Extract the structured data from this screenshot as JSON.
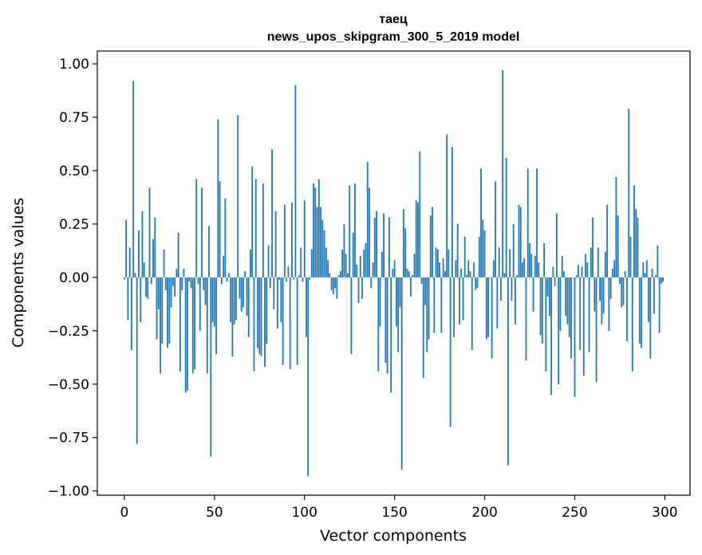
{
  "chart_data": {
    "type": "bar",
    "title_line1": "таец",
    "title_line2": "news_upos_skipgram_300_5_2019 model",
    "xlabel": "Vector components",
    "ylabel": "Components values",
    "xlim": [
      -15,
      314
    ],
    "ylim": [
      -1.02,
      1.06
    ],
    "xticks": [
      0,
      50,
      100,
      150,
      200,
      250,
      300
    ],
    "yticks": [
      1.0,
      0.75,
      0.5,
      0.25,
      0.0,
      -0.25,
      -0.5,
      -0.75,
      -1.0
    ],
    "xtick_labels": [
      "0",
      "50",
      "100",
      "150",
      "200",
      "250",
      "300"
    ],
    "ytick_labels": [
      "1.00",
      "0.75",
      "0.50",
      "0.25",
      "0.00",
      "−0.25",
      "−0.50",
      "−0.75",
      "−1.00"
    ],
    "bar_color": "#1f77b4",
    "values": [
      -0.01,
      0.27,
      -0.2,
      0.14,
      -0.34,
      0.92,
      0.02,
      -0.78,
      0.22,
      -0.21,
      0.31,
      0.07,
      -0.09,
      -0.1,
      0.42,
      -0.03,
      0.18,
      0.28,
      -0.29,
      -0.15,
      -0.45,
      -0.31,
      0.13,
      -0.06,
      -0.33,
      -0.31,
      -0.14,
      -0.04,
      -0.09,
      0.04,
      0.21,
      -0.44,
      -0.06,
      0.04,
      -0.54,
      -0.53,
      -0.02,
      -0.05,
      -0.45,
      -0.43,
      0.46,
      -0.03,
      -0.25,
      0.42,
      -0.06,
      -0.13,
      -0.45,
      0.24,
      -0.84,
      -0.21,
      -0.23,
      -0.36,
      0.74,
      0.45,
      -0.03,
      0.1,
      0.37,
      -0.02,
      0.02,
      -0.21,
      -0.37,
      -0.22,
      -0.2,
      0.76,
      -0.1,
      -0.16,
      -0.14,
      0.03,
      -0.18,
      -0.28,
      0.13,
      0.52,
      -0.44,
      0.46,
      -0.33,
      -0.36,
      -0.37,
      0.44,
      -0.42,
      -0.31,
      0.15,
      -0.05,
      0.6,
      -0.15,
      0.31,
      -0.24,
      -0.01,
      -0.21,
      -0.41,
      0.34,
      -0.02,
      0.05,
      -0.43,
      0.35,
      -0.01,
      0.9,
      -0.41,
      0.01,
      0.14,
      -0.02,
      0.36,
      -0.28,
      -0.93,
      -0.01,
      0.13,
      0.44,
      0.42,
      0.33,
      0.46,
      0.33,
      0.27,
      0.22,
      0.14,
      0.08,
      0.02,
      -0.06,
      -0.08,
      -0.05,
      -0.1,
      0.01,
      0.03,
      0.13,
      0.25,
      0.11,
      0.02,
      0.43,
      -0.36,
      0.21,
      0.44,
      0.06,
      -0.12,
      0.1,
      -0.1,
      0.13,
      0.16,
      0.54,
      0.42,
      -0.05,
      0.07,
      0.28,
      0.31,
      -0.44,
      -0.23,
      0.12,
      0.3,
      -0.4,
      -0.45,
      0.28,
      -0.54,
      0.04,
      0.08,
      -0.23,
      -0.35,
      -0.14,
      -0.9,
      0.32,
      0.23,
      0.04,
      0.03,
      -0.09,
      0.01,
      0.11,
      0.36,
      0.35,
      0.59,
      -0.03,
      -0.47,
      -0.13,
      -0.35,
      -0.29,
      0.29,
      0.33,
      -0.26,
      0.14,
      0.13,
      0.07,
      -0.26,
      0.09,
      0.03,
      0.67,
      0.13,
      -0.7,
      0.61,
      -0.28,
      0.08,
      0.25,
      -0.22,
      0.04,
      -0.2,
      0.19,
      0.01,
      0.08,
      0.03,
      -0.34,
      0.07,
      -0.06,
      -0.05,
      0.19,
      0.51,
      0.27,
      0.22,
      -0.29,
      -0.28,
      0.0,
      -0.38,
      0.08,
      0.45,
      -0.24,
      0.14,
      -0.11,
      0.97,
      0.02,
      0.56,
      -0.88,
      0.13,
      -0.11,
      0.25,
      -0.22,
      0.01,
      0.34,
      0.33,
      0.07,
      0.09,
      -0.39,
      0.51,
      0.16,
      0.11,
      -0.16,
      0.1,
      0.51,
      0.07,
      -0.27,
      -0.31,
      0.16,
      -0.44,
      -0.09,
      -0.18,
      -0.55,
      0.05,
      -0.04,
      0.3,
      -0.5,
      -0.25,
      0.1,
      0.03,
      -0.18,
      -0.22,
      -0.28,
      -0.38,
      0.0,
      -0.56,
      0.01,
      0.06,
      -0.34,
      0.05,
      -0.46,
      0.11,
      0.07,
      -0.35,
      0.14,
      0.28,
      -0.16,
      -0.49,
      0.14,
      -0.11,
      -0.22,
      -0.17,
      0.12,
      0.34,
      -0.25,
      -0.1,
      0.04,
      0.08,
      0.47,
      0.29,
      -0.03,
      -0.14,
      -0.13,
      0.03,
      -0.3,
      0.79,
      0.19,
      -0.44,
      0.43,
      0.32,
      0.28,
      -0.31,
      -0.33,
      0.07,
      0.02,
      0.08,
      -0.21,
      -0.38,
      0.04,
      -0.17,
      0.01,
      0.15,
      -0.26,
      -0.03,
      -0.02
    ]
  }
}
